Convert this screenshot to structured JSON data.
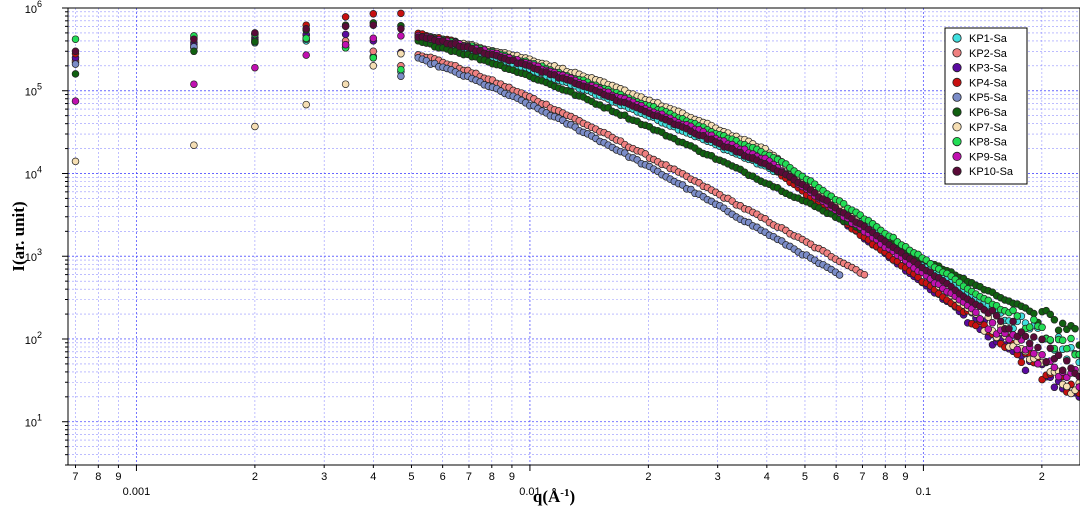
{
  "chart_data": {
    "type": "scatter",
    "title": "",
    "xlabel": "q(Å",
    "xlabel_sup": "-1",
    "xlabel_close": ")",
    "ylabel": "I(ar. unit)",
    "x_scale": "log",
    "y_scale": "log",
    "xlim": [
      0.00067,
      0.25
    ],
    "ylim": [
      3,
      1000000
    ],
    "grid": true,
    "grid_color": "#4040ff",
    "legend_position": "top-right",
    "x_major_ticks": [
      {
        "value": 0.001,
        "label": "0.001"
      },
      {
        "value": 0.01,
        "label": "0.01"
      },
      {
        "value": 0.1,
        "label": "0.1"
      }
    ],
    "x_minor_ticks": [
      {
        "value": 0.0007,
        "label": "7"
      },
      {
        "value": 0.0008,
        "label": "8"
      },
      {
        "value": 0.0009,
        "label": "9"
      },
      {
        "value": 0.002,
        "label": "2"
      },
      {
        "value": 0.003,
        "label": "3"
      },
      {
        "value": 0.004,
        "label": "4"
      },
      {
        "value": 0.005,
        "label": "5"
      },
      {
        "value": 0.006,
        "label": "6"
      },
      {
        "value": 0.007,
        "label": "7"
      },
      {
        "value": 0.008,
        "label": "8"
      },
      {
        "value": 0.009,
        "label": "9"
      },
      {
        "value": 0.02,
        "label": "2"
      },
      {
        "value": 0.03,
        "label": "3"
      },
      {
        "value": 0.04,
        "label": "4"
      },
      {
        "value": 0.05,
        "label": "5"
      },
      {
        "value": 0.06,
        "label": "6"
      },
      {
        "value": 0.07,
        "label": "7"
      },
      {
        "value": 0.08,
        "label": "8"
      },
      {
        "value": 0.09,
        "label": "9"
      },
      {
        "value": 0.2,
        "label": "2"
      }
    ],
    "y_major_ticks": [
      {
        "base": "10",
        "exp": "1",
        "value": 10
      },
      {
        "base": "10",
        "exp": "2",
        "value": 100
      },
      {
        "base": "10",
        "exp": "3",
        "value": 1000
      },
      {
        "base": "10",
        "exp": "4",
        "value": 10000
      },
      {
        "base": "10",
        "exp": "5",
        "value": 100000
      },
      {
        "base": "10",
        "exp": "6",
        "value": 1000000
      }
    ],
    "series": [
      {
        "name": "KP1-Sa",
        "color": "#40e0e0",
        "low_q": [
          [
            0.0007,
            220000
          ],
          [
            0.0014,
            330000
          ],
          [
            0.002,
            380000
          ],
          [
            0.0027,
            400000
          ],
          [
            0.0034,
            330000
          ],
          [
            0.004,
            260000
          ],
          [
            0.0047,
            170000
          ]
        ],
        "curve": {
          "peak": 860000,
          "q0": 0.0055,
          "n": 2.15,
          "qk": 0.048,
          "n2": 3.2,
          "bg": 25,
          "qmax": 0.25
        }
      },
      {
        "name": "KP2-Sa",
        "color": "#f08080",
        "low_q": [
          [
            0.0007,
            230000
          ],
          [
            0.0014,
            380000
          ],
          [
            0.002,
            440000
          ],
          [
            0.0027,
            470000
          ],
          [
            0.0034,
            400000
          ],
          [
            0.004,
            300000
          ],
          [
            0.0047,
            200000
          ]
        ],
        "curve": {
          "peak": 800000,
          "q0": 0.0047,
          "n": 2.65,
          "qk": 1,
          "n2": 2.65,
          "bg": 4,
          "qmax": 0.072
        }
      },
      {
        "name": "KP3-Sa",
        "color": "#5a0aa0",
        "low_q": [
          [
            0.0007,
            250000
          ],
          [
            0.0014,
            360000
          ],
          [
            0.002,
            420000
          ],
          [
            0.0027,
            480000
          ],
          [
            0.0034,
            480000
          ],
          [
            0.004,
            400000
          ],
          [
            0.0047,
            290000
          ]
        ],
        "curve": {
          "peak": 870000,
          "q0": 0.0058,
          "n": 2.1,
          "qk": 0.038,
          "n2": 3.7,
          "bg": 5,
          "qmax": 0.25
        }
      },
      {
        "name": "KP4-Sa",
        "color": "#c81010",
        "low_q": [
          [
            0.0007,
            280000
          ],
          [
            0.0014,
            430000
          ],
          [
            0.002,
            490000
          ],
          [
            0.0027,
            620000
          ],
          [
            0.0034,
            780000
          ],
          [
            0.004,
            850000
          ],
          [
            0.0047,
            860000
          ]
        ],
        "curve": {
          "peak": 880000,
          "q0": 0.0062,
          "n": 2.25,
          "qk": 0.04,
          "n2": 3.6,
          "bg": 4,
          "qmax": 0.25
        }
      },
      {
        "name": "KP5-Sa",
        "color": "#7b8cc8",
        "low_q": [
          [
            0.0007,
            210000
          ],
          [
            0.0014,
            340000
          ],
          [
            0.002,
            400000
          ],
          [
            0.0027,
            420000
          ],
          [
            0.0034,
            360000
          ],
          [
            0.004,
            250000
          ],
          [
            0.0047,
            150000
          ]
        ],
        "curve": {
          "peak": 780000,
          "q0": 0.0045,
          "n": 2.75,
          "qk": 1,
          "n2": 2.75,
          "bg": 3,
          "qmax": 0.062
        }
      },
      {
        "name": "KP6-Sa",
        "color": "#106010",
        "low_q": [
          [
            0.0007,
            160000
          ],
          [
            0.0014,
            300000
          ],
          [
            0.002,
            390000
          ],
          [
            0.0027,
            540000
          ],
          [
            0.0034,
            620000
          ],
          [
            0.004,
            660000
          ],
          [
            0.0047,
            610000
          ]
        ],
        "curve": {
          "peak": 830000,
          "q0": 0.0055,
          "n": 2.35,
          "qk": 1,
          "n2": 2.35,
          "bg": 8,
          "qmax": 0.25
        }
      },
      {
        "name": "KP7-Sa",
        "color": "#f5deb3",
        "low_q": [
          [
            0.0007,
            14000
          ],
          [
            0.0014,
            22000
          ],
          [
            0.002,
            37000
          ],
          [
            0.0027,
            68000
          ],
          [
            0.0034,
            120000
          ],
          [
            0.004,
            200000
          ],
          [
            0.0047,
            280000
          ]
        ],
        "curve": {
          "peak": 650000,
          "q0": 0.0082,
          "n": 2.2,
          "qk": 0.04,
          "n2": 3.8,
          "bg": 5,
          "qmax": 0.25
        }
      },
      {
        "name": "KP8-Sa",
        "color": "#22dd55",
        "low_q": [
          [
            0.0007,
            420000
          ],
          [
            0.0014,
            460000
          ],
          [
            0.002,
            480000
          ],
          [
            0.0027,
            430000
          ],
          [
            0.0034,
            330000
          ],
          [
            0.004,
            250000
          ],
          [
            0.0047,
            180000
          ]
        ],
        "curve": {
          "peak": 800000,
          "q0": 0.0062,
          "n": 2.05,
          "qk": 0.042,
          "n2": 3.3,
          "bg": 30,
          "qmax": 0.25
        }
      },
      {
        "name": "KP9-Sa",
        "color": "#c010b0",
        "low_q": [
          [
            0.0007,
            75000
          ],
          [
            0.0014,
            120000
          ],
          [
            0.002,
            190000
          ],
          [
            0.0027,
            270000
          ],
          [
            0.0034,
            360000
          ],
          [
            0.004,
            430000
          ],
          [
            0.0047,
            460000
          ]
        ],
        "curve": {
          "peak": 820000,
          "q0": 0.0062,
          "n": 2.15,
          "qk": 0.04,
          "n2": 3.5,
          "bg": 7,
          "qmax": 0.25
        }
      },
      {
        "name": "KP10-Sa",
        "color": "#5a0a38",
        "low_q": [
          [
            0.0007,
            300000
          ],
          [
            0.0014,
            420000
          ],
          [
            0.002,
            500000
          ],
          [
            0.0027,
            560000
          ],
          [
            0.0034,
            600000
          ],
          [
            0.004,
            620000
          ],
          [
            0.0047,
            560000
          ]
        ],
        "curve": {
          "peak": 840000,
          "q0": 0.006,
          "n": 2.2,
          "qk": 0.045,
          "n2": 3.3,
          "bg": 6,
          "qmax": 0.25
        }
      }
    ]
  }
}
